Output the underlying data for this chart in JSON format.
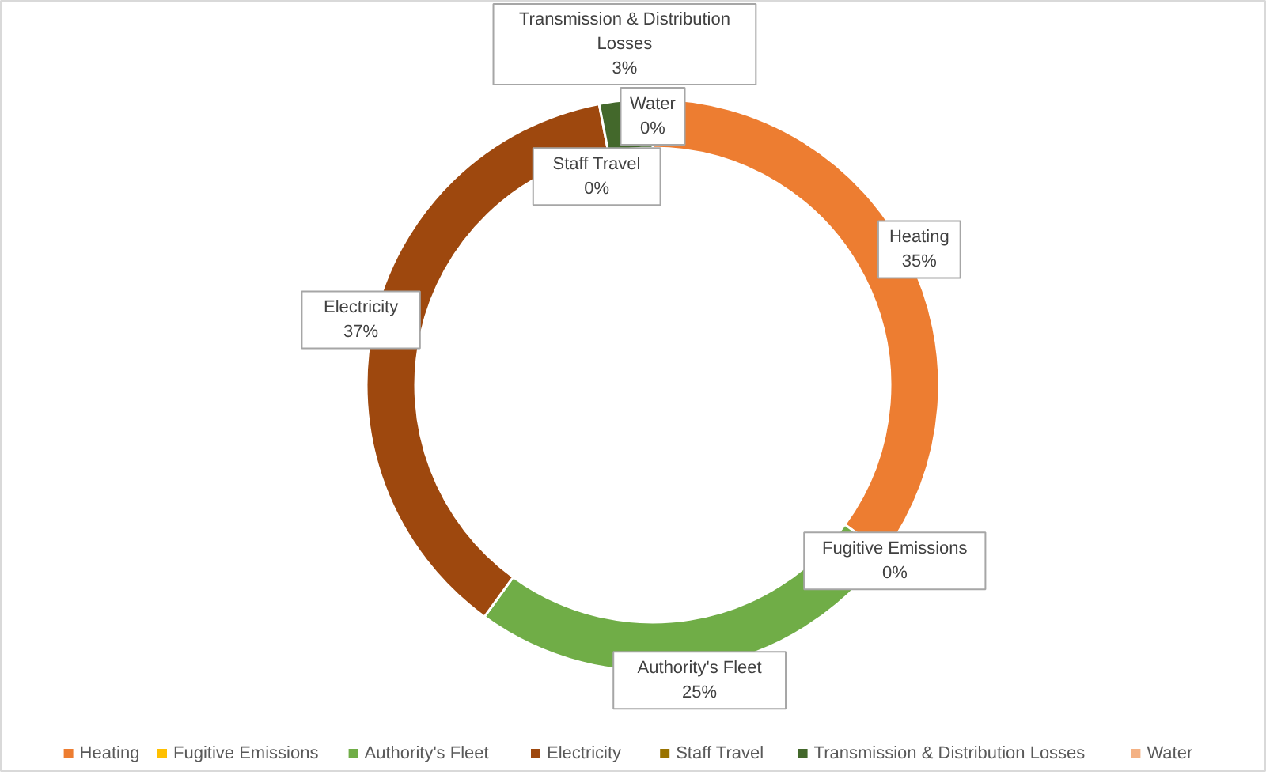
{
  "chart_data": {
    "type": "donut",
    "categories": [
      "Heating",
      "Fugitive Emissions",
      "Authority's Fleet",
      "Electricity",
      "Staff Travel",
      "Transmission & Distribution Losses",
      "Water"
    ],
    "values": [
      35,
      0,
      25,
      37,
      0,
      3,
      0
    ],
    "colors": [
      "#ed7d31",
      "#ffc000",
      "#70ad47",
      "#9e480e",
      "#997300",
      "#43682b",
      "#f4b183"
    ],
    "value_labels": [
      "35%",
      "0%",
      "25%",
      "37%",
      "0%",
      "3%",
      "0%"
    ],
    "legend": "bottom"
  }
}
